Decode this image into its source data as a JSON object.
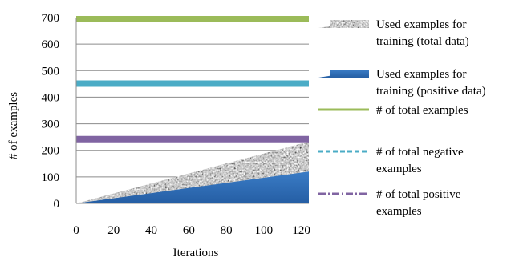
{
  "chart_data": {
    "type": "area",
    "title": "",
    "xlabel": "Iterations",
    "ylabel": "# of examples",
    "xlim": [
      0,
      124
    ],
    "ylim": [
      0,
      700
    ],
    "x_ticks": [
      0,
      20,
      40,
      60,
      80,
      100,
      120
    ],
    "y_ticks": [
      0,
      100,
      200,
      300,
      400,
      500,
      600,
      700
    ],
    "grid": "horizontal",
    "legend_position": "right",
    "series": [
      {
        "name": "Used examples for training (total data)",
        "legend_lines": [
          "Used examples for",
          "training (total data)"
        ],
        "kind": "area",
        "style": "speckled-gray",
        "color": "#9a9a9a",
        "x": [
          0,
          124
        ],
        "y": [
          0,
          233
        ]
      },
      {
        "name": "Used examples for training (positive data)",
        "legend_lines": [
          "Used examples for",
          "training (positive data)"
        ],
        "kind": "area",
        "style": "blue-gradient",
        "color": "#2f6db5",
        "x": [
          0,
          124
        ],
        "y": [
          0,
          120
        ]
      },
      {
        "name": "# of total examples",
        "legend_lines": [
          "# of total examples"
        ],
        "kind": "line",
        "dash": "solid",
        "color": "#9bbb59",
        "x": [
          0,
          124
        ],
        "y": [
          694,
          694
        ]
      },
      {
        "name": "# of total negative examples",
        "legend_lines": [
          "# of total negative",
          "examples"
        ],
        "kind": "line",
        "dash": "dashed",
        "color": "#4bacc6",
        "x": [
          0,
          124
        ],
        "y": [
          451,
          451
        ]
      },
      {
        "name": "# of total positive examples",
        "legend_lines": [
          "# of total positive",
          "examples"
        ],
        "kind": "line",
        "dash": "dash-dot",
        "color": "#8064a2",
        "x": [
          0,
          124
        ],
        "y": [
          242,
          242
        ]
      }
    ]
  }
}
